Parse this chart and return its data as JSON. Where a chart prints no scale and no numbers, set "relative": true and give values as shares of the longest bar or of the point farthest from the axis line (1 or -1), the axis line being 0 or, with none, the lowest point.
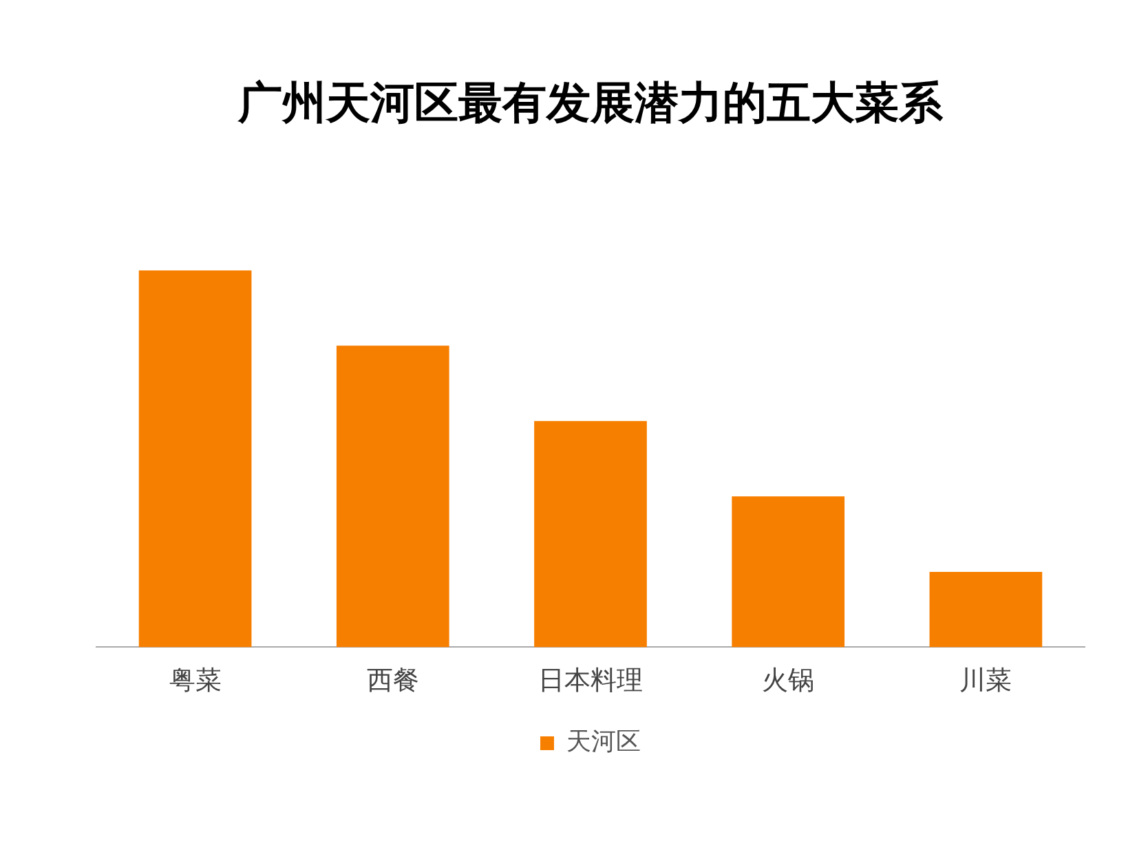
{
  "chart_data": {
    "type": "bar",
    "title": "广州天河区最有发展潜力的五大菜系",
    "categories": [
      "粤菜",
      "西餐",
      "日本料理",
      "火锅",
      "川菜"
    ],
    "relative": true,
    "series": [
      {
        "name": "天河区",
        "color": "#f77f00",
        "values": [
          1,
          0.8,
          0.6,
          0.4,
          0.2
        ]
      }
    ],
    "grid": false,
    "legend": "bottom"
  }
}
